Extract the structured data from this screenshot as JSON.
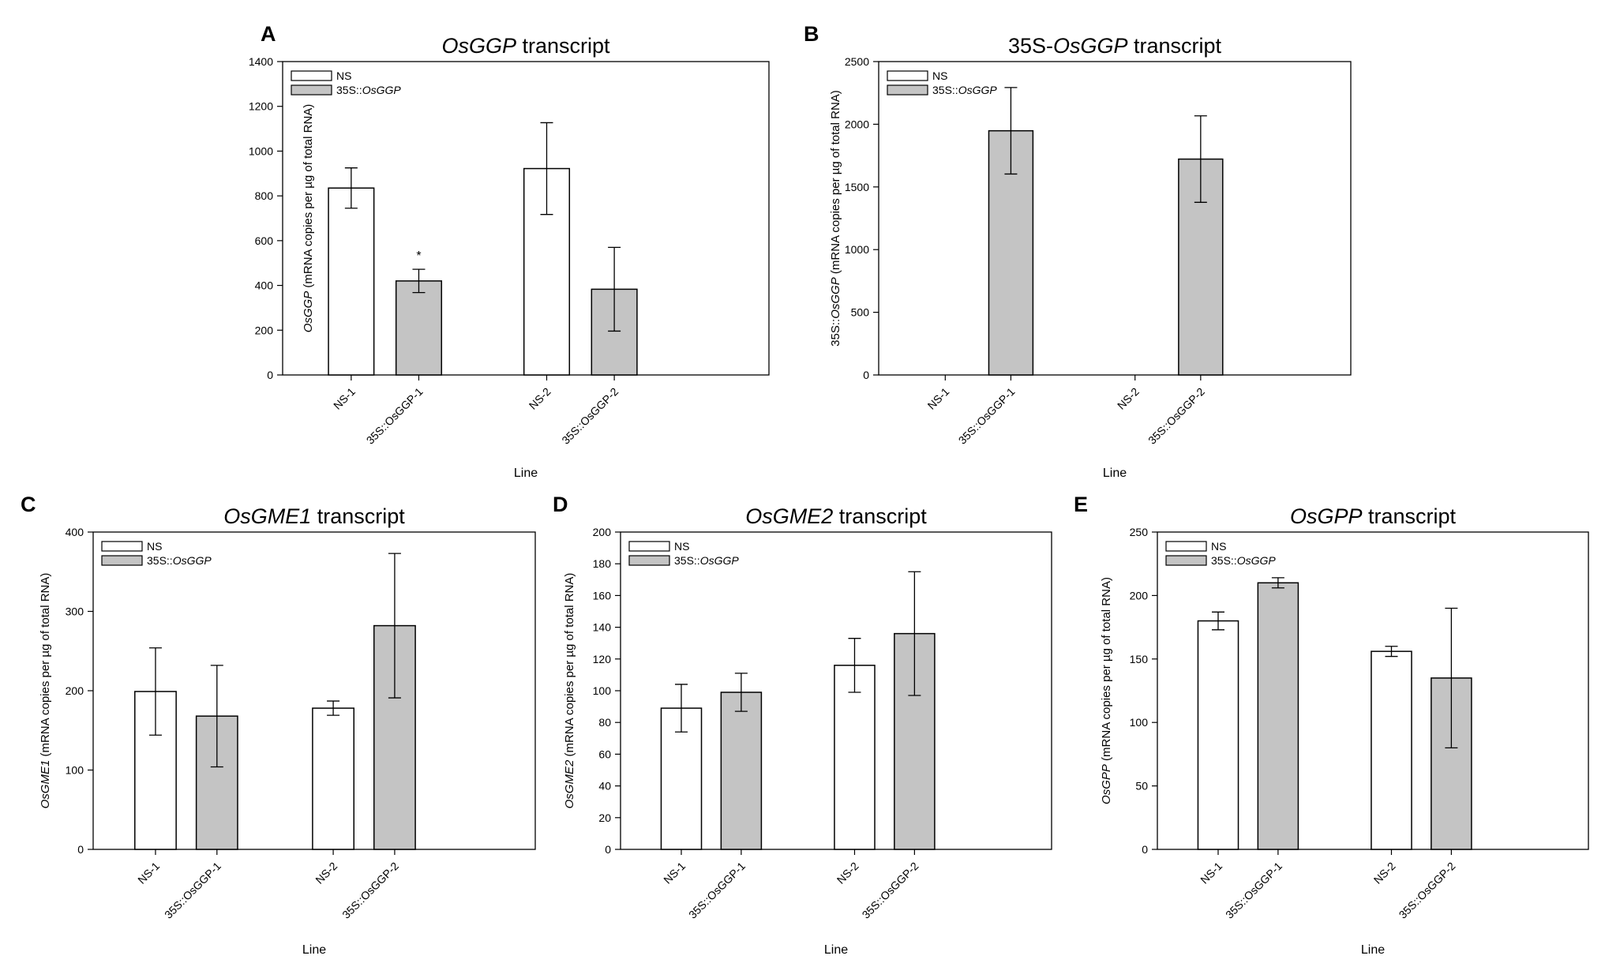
{
  "colors": {
    "ns_fill": "#ffffff",
    "oe_fill": "#c4c4c4",
    "stroke": "#000000"
  },
  "chart_data": [
    {
      "panel": "A",
      "type": "bar",
      "title": "OsGGP transcript",
      "title_parts": [
        {
          "text": "OsGGP",
          "italic": true
        },
        {
          "text": " transcript",
          "italic": false
        }
      ],
      "ylabel_parts": [
        {
          "text": "OsGGP",
          "italic": true
        },
        {
          "text": " (mRNA copies per µg of total RNA)",
          "italic": false
        }
      ],
      "xlabel": "Line",
      "ylim": [
        0,
        1400
      ],
      "yticks": [
        0,
        200,
        400,
        600,
        800,
        1000,
        1200,
        1400
      ],
      "legend": [
        {
          "parts": [
            {
              "text": "NS",
              "italic": false
            }
          ],
          "group": "NS"
        },
        {
          "parts": [
            {
              "text": "35S::",
              "italic": false
            },
            {
              "text": "OsGGP",
              "italic": true
            }
          ],
          "group": "OE"
        }
      ],
      "bars": [
        {
          "label": "NS-1",
          "group": "NS",
          "value": 835,
          "err": 90
        },
        {
          "label": "35S::OsGGP-1",
          "group": "OE",
          "value": 420,
          "err": 52,
          "annotation": "*"
        },
        {
          "label": "NS-2",
          "group": "NS",
          "value": 922,
          "err": 205
        },
        {
          "label": "35S::OsGGP-2",
          "group": "OE",
          "value": 383,
          "err": 187
        }
      ]
    },
    {
      "panel": "B",
      "type": "bar",
      "title": "35S-OsGGP transcript",
      "title_parts": [
        {
          "text": "35S-",
          "italic": false
        },
        {
          "text": "OsGGP",
          "italic": true
        },
        {
          "text": " transcript",
          "italic": false
        }
      ],
      "ylabel_parts": [
        {
          "text": "35S::",
          "italic": false
        },
        {
          "text": "OsGGP",
          "italic": true
        },
        {
          "text": " (mRNA copies per µg of total RNA)",
          "italic": false
        }
      ],
      "xlabel": "Line",
      "ylim": [
        0,
        2500
      ],
      "yticks": [
        0,
        500,
        1000,
        1500,
        2000,
        2500
      ],
      "legend": [
        {
          "parts": [
            {
              "text": "NS",
              "italic": false
            }
          ],
          "group": "NS"
        },
        {
          "parts": [
            {
              "text": "35S::",
              "italic": false
            },
            {
              "text": "OsGGP",
              "italic": true
            }
          ],
          "group": "OE"
        }
      ],
      "bars": [
        {
          "label": "NS-1",
          "group": "NS",
          "value": 0,
          "err": 0
        },
        {
          "label": "35S::OsGGP-1",
          "group": "OE",
          "value": 1948,
          "err": 345
        },
        {
          "label": "NS-2",
          "group": "NS",
          "value": 0,
          "err": 0
        },
        {
          "label": "35S::OsGGP-2",
          "group": "OE",
          "value": 1722,
          "err": 345
        }
      ]
    },
    {
      "panel": "C",
      "type": "bar",
      "title": "OsGME1 transcript",
      "title_parts": [
        {
          "text": "OsGME1",
          "italic": true
        },
        {
          "text": " transcript",
          "italic": false
        }
      ],
      "ylabel_parts": [
        {
          "text": "OsGME1",
          "italic": true
        },
        {
          "text": " (mRNA copies per µg of total RNA)",
          "italic": false
        }
      ],
      "xlabel": "Line",
      "ylim": [
        0,
        400
      ],
      "yticks": [
        0,
        100,
        200,
        300,
        400
      ],
      "legend": [
        {
          "parts": [
            {
              "text": "NS",
              "italic": false
            }
          ],
          "group": "NS"
        },
        {
          "parts": [
            {
              "text": "35S::",
              "italic": false
            },
            {
              "text": "OsGGP",
              "italic": true
            }
          ],
          "group": "OE"
        }
      ],
      "bars": [
        {
          "label": "NS-1",
          "group": "NS",
          "value": 199,
          "err": 55
        },
        {
          "label": "35S::OsGGP-1",
          "group": "OE",
          "value": 168,
          "err": 64
        },
        {
          "label": "NS-2",
          "group": "NS",
          "value": 178,
          "err": 9
        },
        {
          "label": "35S::OsGGP-2",
          "group": "OE",
          "value": 282,
          "err": 91
        }
      ]
    },
    {
      "panel": "D",
      "type": "bar",
      "title": "OsGME2 transcript",
      "title_parts": [
        {
          "text": "OsGME2",
          "italic": true
        },
        {
          "text": " transcript",
          "italic": false
        }
      ],
      "ylabel_parts": [
        {
          "text": "OsGME2",
          "italic": true
        },
        {
          "text": " (mRNA copies per µg of total RNA)",
          "italic": false
        }
      ],
      "xlabel": "Line",
      "ylim": [
        0,
        200
      ],
      "yticks": [
        0,
        20,
        40,
        60,
        80,
        100,
        120,
        140,
        160,
        180,
        200
      ],
      "legend": [
        {
          "parts": [
            {
              "text": "NS",
              "italic": false
            }
          ],
          "group": "NS"
        },
        {
          "parts": [
            {
              "text": "35S::",
              "italic": false
            },
            {
              "text": "OsGGP",
              "italic": true
            }
          ],
          "group": "OE"
        }
      ],
      "bars": [
        {
          "label": "NS-1",
          "group": "NS",
          "value": 89,
          "err": 15
        },
        {
          "label": "35S::OsGGP-1",
          "group": "OE",
          "value": 99,
          "err": 12
        },
        {
          "label": "NS-2",
          "group": "NS",
          "value": 116,
          "err": 17
        },
        {
          "label": "35S::OsGGP-2",
          "group": "OE",
          "value": 136,
          "err": 39
        }
      ]
    },
    {
      "panel": "E",
      "type": "bar",
      "title": "OsGPP transcript",
      "title_parts": [
        {
          "text": "OsGPP",
          "italic": true
        },
        {
          "text": " transcript",
          "italic": false
        }
      ],
      "ylabel_parts": [
        {
          "text": "OsGPP",
          "italic": true
        },
        {
          "text": " (mRNA copies per µg of total RNA)",
          "italic": false
        }
      ],
      "xlabel": "Line",
      "ylim": [
        0,
        250
      ],
      "yticks": [
        0,
        50,
        100,
        150,
        200,
        250
      ],
      "legend": [
        {
          "parts": [
            {
              "text": "NS",
              "italic": false
            }
          ],
          "group": "NS"
        },
        {
          "parts": [
            {
              "text": "35S::",
              "italic": false
            },
            {
              "text": "OsGGP",
              "italic": true
            }
          ],
          "group": "OE"
        }
      ],
      "bars": [
        {
          "label": "NS-1",
          "group": "NS",
          "value": 180,
          "err": 7
        },
        {
          "label": "35S::OsGGP-1",
          "group": "OE",
          "value": 210,
          "err": 4
        },
        {
          "label": "NS-2",
          "group": "NS",
          "value": 156,
          "err": 4
        },
        {
          "label": "35S::OsGGP-2",
          "group": "OE",
          "value": 135,
          "err": 55
        }
      ]
    }
  ]
}
